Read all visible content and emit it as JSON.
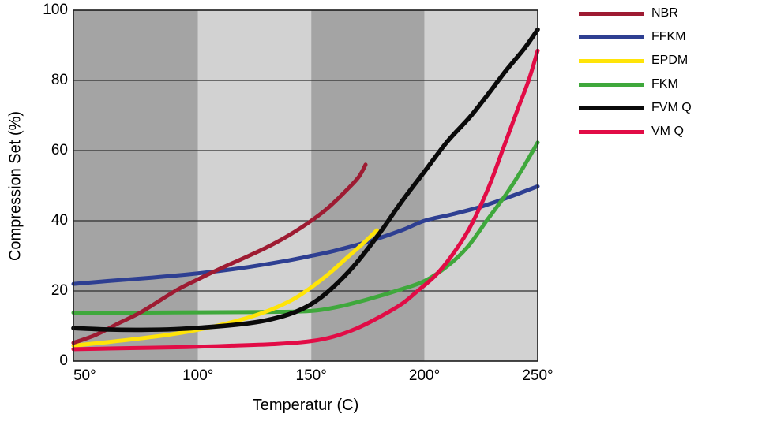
{
  "page": {
    "background": "#ffffff"
  },
  "chart_data": {
    "type": "line",
    "title": "",
    "xlabel": "Temperatur (C)",
    "ylabel": "Compression Set (%)",
    "xlim": [
      45,
      250
    ],
    "ylim": [
      0,
      100
    ],
    "grid": "horizontal-only",
    "legend_position": "top-right-outside",
    "x_ticks": [
      {
        "value": 50,
        "label": "50°"
      },
      {
        "value": 100,
        "label": "100°"
      },
      {
        "value": 150,
        "label": "150°"
      },
      {
        "value": 200,
        "label": "200°"
      },
      {
        "value": 250,
        "label": "250°"
      }
    ],
    "y_ticks": [
      {
        "value": 0,
        "label": "0"
      },
      {
        "value": 20,
        "label": "20"
      },
      {
        "value": 40,
        "label": "40"
      },
      {
        "value": 60,
        "label": "60"
      },
      {
        "value": 80,
        "label": "80"
      },
      {
        "value": 100,
        "label": "100"
      }
    ],
    "y_gridlines": [
      20,
      40,
      60,
      80
    ],
    "gridline_color": "#2e2e2e",
    "border_color": "#1c1c1c",
    "plot_bands": [
      {
        "from": 45,
        "to": 100,
        "color": "#a4a4a4"
      },
      {
        "from": 100,
        "to": 150,
        "color": "#d2d2d2"
      },
      {
        "from": 150,
        "to": 200,
        "color": "#a4a4a4"
      },
      {
        "from": 200,
        "to": 250,
        "color": "#d2d2d2"
      }
    ],
    "series": [
      {
        "name": "FFKM",
        "color": "#2e3f92",
        "line_width": 5,
        "points": [
          [
            45,
            22
          ],
          [
            60,
            22.8
          ],
          [
            80,
            23.8
          ],
          [
            100,
            25
          ],
          [
            120,
            26.6
          ],
          [
            140,
            28.7
          ],
          [
            150,
            30
          ],
          [
            160,
            31.4
          ],
          [
            175,
            34
          ],
          [
            190,
            37.3
          ],
          [
            200,
            40
          ],
          [
            212,
            41.8
          ],
          [
            225,
            44
          ],
          [
            238,
            46.9
          ],
          [
            250,
            49.8
          ]
        ]
      },
      {
        "name": "FKM",
        "color": "#3fa83c",
        "line_width": 5,
        "points": [
          [
            45,
            13.8
          ],
          [
            70,
            13.8
          ],
          [
            100,
            13.9
          ],
          [
            130,
            14
          ],
          [
            150,
            14.3
          ],
          [
            162,
            15.5
          ],
          [
            175,
            17.6
          ],
          [
            190,
            20.5
          ],
          [
            200,
            22.8
          ],
          [
            210,
            27
          ],
          [
            219,
            32.5
          ],
          [
            228,
            40.5
          ],
          [
            236,
            47.5
          ],
          [
            243,
            54.5
          ],
          [
            250,
            62.3
          ]
        ]
      },
      {
        "name": "EPDM",
        "color": "#ffe408",
        "line_width": 5,
        "points": [
          [
            45,
            4.4
          ],
          [
            60,
            5.4
          ],
          [
            75,
            6.5
          ],
          [
            90,
            7.8
          ],
          [
            105,
            9.6
          ],
          [
            120,
            12
          ],
          [
            132,
            14.6
          ],
          [
            142,
            17.6
          ],
          [
            150,
            21
          ],
          [
            158,
            25
          ],
          [
            166,
            29.6
          ],
          [
            173,
            33.6
          ],
          [
            179,
            37.3
          ]
        ]
      },
      {
        "name": "NBR",
        "color": "#9e1b32",
        "line_width": 5,
        "points": [
          [
            45,
            5.2
          ],
          [
            55,
            7.5
          ],
          [
            65,
            10.8
          ],
          [
            75,
            14
          ],
          [
            90,
            20
          ],
          [
            100,
            23.3
          ],
          [
            110,
            26.4
          ],
          [
            120,
            29.3
          ],
          [
            130,
            32.3
          ],
          [
            140,
            35.8
          ],
          [
            150,
            40
          ],
          [
            158,
            44
          ],
          [
            166,
            49
          ],
          [
            171,
            52.5
          ],
          [
            174,
            56
          ]
        ]
      },
      {
        "name": "FVM Q",
        "color": "#0a0a0a",
        "line_width": 5.6,
        "points": [
          [
            45,
            9.4
          ],
          [
            60,
            9
          ],
          [
            75,
            8.9
          ],
          [
            90,
            9.1
          ],
          [
            105,
            9.7
          ],
          [
            120,
            10.6
          ],
          [
            130,
            11.6
          ],
          [
            140,
            13.3
          ],
          [
            148,
            15.5
          ],
          [
            155,
            18.5
          ],
          [
            162,
            22.5
          ],
          [
            170,
            28
          ],
          [
            180,
            36.3
          ],
          [
            190,
            45.5
          ],
          [
            200,
            54
          ],
          [
            210,
            62.5
          ],
          [
            220,
            69.5
          ],
          [
            228,
            76
          ],
          [
            236,
            82.8
          ],
          [
            244,
            89
          ],
          [
            250,
            94.5
          ]
        ]
      },
      {
        "name": "VM Q",
        "color": "#e20c46",
        "line_width": 5,
        "points": [
          [
            45,
            3.4
          ],
          [
            70,
            3.7
          ],
          [
            95,
            4
          ],
          [
            115,
            4.4
          ],
          [
            135,
            4.9
          ],
          [
            150,
            5.7
          ],
          [
            160,
            7
          ],
          [
            170,
            9.3
          ],
          [
            180,
            12.5
          ],
          [
            190,
            16.3
          ],
          [
            197,
            20
          ],
          [
            205,
            24.5
          ],
          [
            212,
            30
          ],
          [
            220,
            38
          ],
          [
            228,
            49
          ],
          [
            235,
            61
          ],
          [
            241,
            71.5
          ],
          [
            246,
            80
          ],
          [
            250,
            88.5
          ]
        ]
      }
    ],
    "legend_order": [
      "NBR",
      "FFKM",
      "EPDM",
      "FKM",
      "FVM Q",
      "VM Q"
    ]
  }
}
